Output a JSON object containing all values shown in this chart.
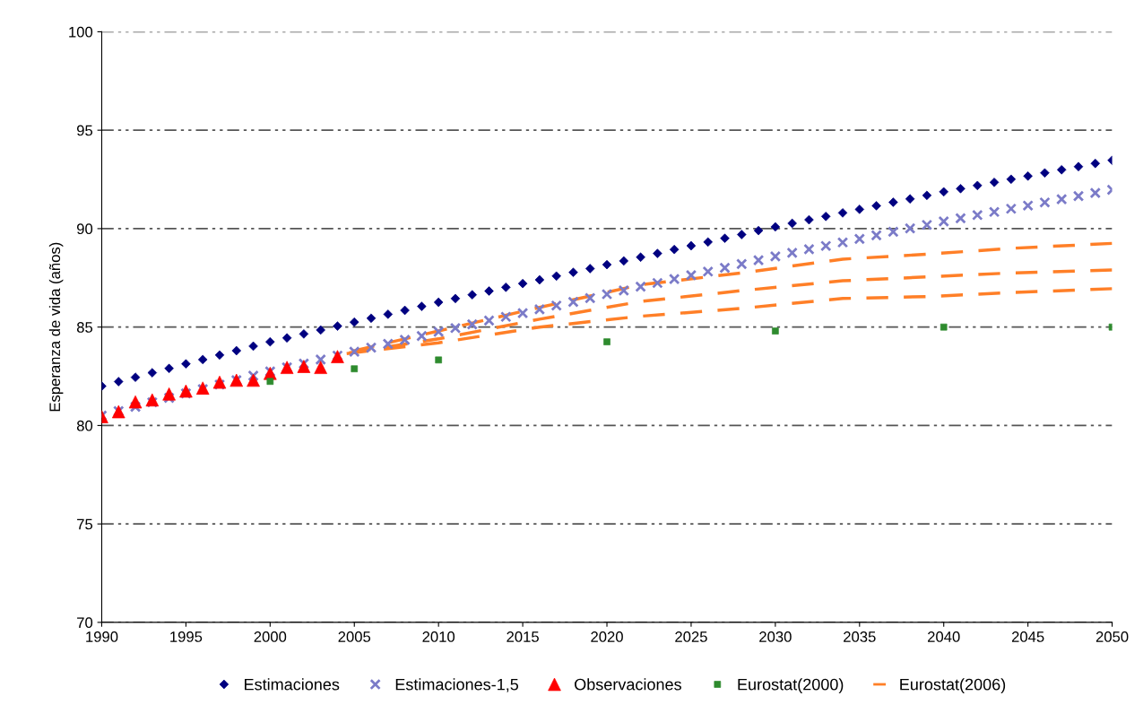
{
  "chart_data": {
    "type": "scatter",
    "ylabel": "Esperanza de vida (años)",
    "xlim": [
      1990,
      2050
    ],
    "xticks": [
      1990,
      1995,
      2000,
      2005,
      2010,
      2015,
      2020,
      2025,
      2030,
      2035,
      2040,
      2045,
      2050
    ],
    "ylim": [
      70,
      100
    ],
    "yticks": [
      70,
      75,
      80,
      85,
      90,
      95,
      100
    ],
    "grid": "y",
    "legend": "bottom",
    "series": [
      {
        "name": "Estimaciones",
        "marker": "diamond",
        "color": "#000080",
        "x": [
          1990,
          1991,
          1992,
          1993,
          1994,
          1995,
          1996,
          1997,
          1998,
          1999,
          2000,
          2001,
          2002,
          2003,
          2004,
          2005,
          2006,
          2007,
          2008,
          2009,
          2010,
          2011,
          2012,
          2013,
          2014,
          2015,
          2016,
          2017,
          2018,
          2019,
          2020,
          2021,
          2022,
          2023,
          2024,
          2025,
          2026,
          2027,
          2028,
          2029,
          2030,
          2031,
          2032,
          2033,
          2034,
          2035,
          2036,
          2037,
          2038,
          2039,
          2040,
          2041,
          2042,
          2043,
          2044,
          2045,
          2046,
          2047,
          2048,
          2049,
          2050
        ],
        "values": [
          82.0,
          82.23,
          82.45,
          82.68,
          82.9,
          83.13,
          83.35,
          83.58,
          83.8,
          84.03,
          84.25,
          84.45,
          84.65,
          84.85,
          85.05,
          85.25,
          85.45,
          85.65,
          85.85,
          86.05,
          86.26,
          86.45,
          86.64,
          86.83,
          87.02,
          87.21,
          87.4,
          87.59,
          87.78,
          87.97,
          88.17,
          88.36,
          88.55,
          88.74,
          88.94,
          89.13,
          89.32,
          89.51,
          89.7,
          89.9,
          90.09,
          90.27,
          90.45,
          90.62,
          90.8,
          90.98,
          91.16,
          91.34,
          91.51,
          91.69,
          91.87,
          92.03,
          92.19,
          92.35,
          92.51,
          92.67,
          92.83,
          92.99,
          93.15,
          93.31,
          93.47
        ]
      },
      {
        "name": "Estimaciones-1,5",
        "marker": "cross",
        "color": "#7b7bc8",
        "x": [
          1990,
          1991,
          1992,
          1993,
          1994,
          1995,
          1996,
          1997,
          1998,
          1999,
          2000,
          2001,
          2002,
          2003,
          2004,
          2005,
          2006,
          2007,
          2008,
          2009,
          2010,
          2011,
          2012,
          2013,
          2014,
          2015,
          2016,
          2017,
          2018,
          2019,
          2020,
          2021,
          2022,
          2023,
          2024,
          2025,
          2026,
          2027,
          2028,
          2029,
          2030,
          2031,
          2032,
          2033,
          2034,
          2035,
          2036,
          2037,
          2038,
          2039,
          2040,
          2041,
          2042,
          2043,
          2044,
          2045,
          2046,
          2047,
          2048,
          2049,
          2050
        ],
        "values": [
          80.5,
          80.73,
          80.95,
          81.18,
          81.4,
          81.63,
          81.85,
          82.08,
          82.3,
          82.53,
          82.75,
          82.95,
          83.15,
          83.35,
          83.55,
          83.75,
          83.95,
          84.15,
          84.35,
          84.55,
          84.76,
          84.95,
          85.14,
          85.33,
          85.52,
          85.71,
          85.9,
          86.09,
          86.28,
          86.47,
          86.67,
          86.86,
          87.05,
          87.24,
          87.44,
          87.63,
          87.82,
          88.01,
          88.2,
          88.4,
          88.59,
          88.77,
          88.95,
          89.12,
          89.3,
          89.48,
          89.66,
          89.84,
          90.01,
          90.19,
          90.37,
          90.53,
          90.69,
          90.85,
          91.01,
          91.17,
          91.33,
          91.49,
          91.65,
          91.81,
          91.97
        ]
      },
      {
        "name": "Observaciones",
        "marker": "triangle",
        "color": "#ff0000",
        "x": [
          1990,
          1991,
          1992,
          1993,
          1994,
          1995,
          1996,
          1997,
          1998,
          1999,
          2000,
          2001,
          2002,
          2003,
          2004
        ],
        "values": [
          80.45,
          80.7,
          81.2,
          81.3,
          81.6,
          81.75,
          81.9,
          82.2,
          82.3,
          82.3,
          82.65,
          82.95,
          83.0,
          82.95,
          83.5
        ]
      },
      {
        "name": "Eurostat(2000)",
        "marker": "square",
        "color": "#2e8b2e",
        "x": [
          2000,
          2005,
          2010,
          2020,
          2030,
          2040,
          2050
        ],
        "values": [
          82.24,
          82.88,
          83.33,
          84.25,
          84.8,
          85.0,
          85.0
        ]
      },
      {
        "name": "Eurostat(2006)",
        "type": "line",
        "line_style": "dashed",
        "color": "#ff7f27",
        "x": [
          2004,
          2010,
          2016,
          2022,
          2028,
          2034,
          2039,
          2044,
          2050
        ],
        "values": [
          83.6,
          84.8,
          86.0,
          87.15,
          87.75,
          88.45,
          88.7,
          89.0,
          89.25
        ]
      },
      {
        "type": "line",
        "line_style": "dashed",
        "color": "#ff7f27",
        "x": [
          2004,
          2010,
          2016,
          2022,
          2028,
          2034,
          2039,
          2044,
          2050
        ],
        "values": [
          83.6,
          84.4,
          85.4,
          86.3,
          86.85,
          87.35,
          87.55,
          87.75,
          87.9
        ]
      },
      {
        "type": "line",
        "line_style": "dashed",
        "color": "#ff7f27",
        "x": [
          2004,
          2010,
          2016,
          2022,
          2028,
          2034,
          2039,
          2044,
          2050
        ],
        "values": [
          83.6,
          84.2,
          85.0,
          85.55,
          85.95,
          86.45,
          86.55,
          86.75,
          86.95
        ]
      }
    ]
  }
}
